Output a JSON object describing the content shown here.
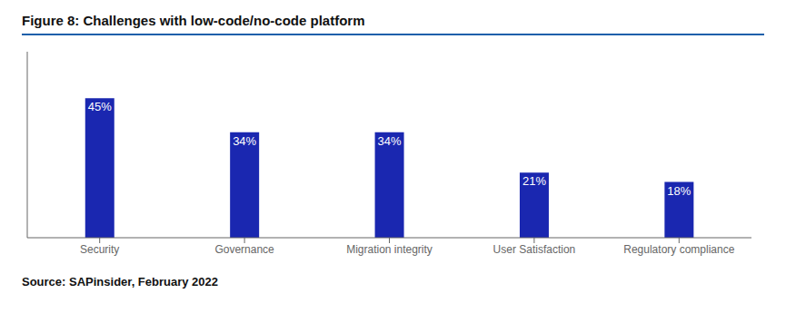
{
  "chart_data": {
    "type": "bar",
    "title": "Figure 8: Challenges with low-code/no-code platform",
    "categories": [
      "Security",
      "Governance",
      "Migration integrity",
      "User Satisfaction",
      "Regulatory compliance"
    ],
    "values": [
      45,
      34,
      34,
      21,
      18
    ],
    "value_labels": [
      "45%",
      "34%",
      "34%",
      "21%",
      "18%"
    ],
    "data_labels": true,
    "color": "#1a27b0",
    "ylim": [
      0,
      60
    ],
    "tick_labels": "x",
    "source": "Source: SAPinsider, February 2022"
  }
}
